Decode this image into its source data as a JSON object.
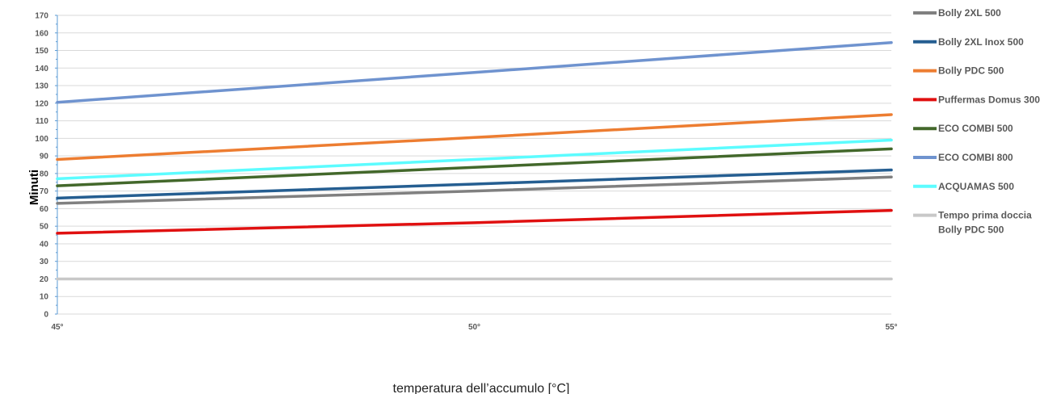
{
  "chart_data": {
    "type": "line",
    "title": "",
    "xlabel": "temperatura dell’accumulo [°C]",
    "ylabel": "Minuti",
    "x": [
      "45°",
      "50°",
      "55°"
    ],
    "ylim": [
      0,
      170
    ],
    "yticks": [
      0,
      10,
      20,
      30,
      40,
      50,
      60,
      70,
      80,
      90,
      100,
      110,
      120,
      130,
      140,
      150,
      160,
      170
    ],
    "grid": "horizontal",
    "legend_position": "right",
    "series": [
      {
        "name": "Bolly 2XL 500",
        "color": "#808080",
        "values": [
          63,
          70,
          78
        ]
      },
      {
        "name": "Bolly 2XL Inox 500",
        "color": "#255e91",
        "values": [
          66,
          74,
          82
        ]
      },
      {
        "name": "Bolly PDC 500",
        "color": "#ed7d31",
        "values": [
          88,
          100.5,
          113.5
        ]
      },
      {
        "name": "Puffermas Domus 300",
        "color": "#e01010",
        "values": [
          46,
          52,
          59
        ]
      },
      {
        "name": "ECO COMBI 500",
        "color": "#43682b",
        "values": [
          73,
          83.5,
          94
        ]
      },
      {
        "name": "ECO COMBI 800",
        "color": "#6f93cf",
        "values": [
          120.5,
          137.5,
          154.5
        ]
      },
      {
        "name": "ACQUAMAS 500",
        "color": "#5cfcff",
        "values": [
          77,
          88,
          99
        ]
      },
      {
        "name_lines": [
          "Tempo prima doccia",
          "Bolly PDC 500"
        ],
        "color": "#c8c8c8",
        "values": [
          20,
          20,
          20
        ]
      }
    ]
  }
}
